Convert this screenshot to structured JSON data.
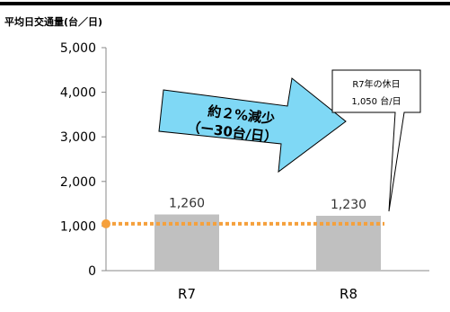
{
  "chart_data": {
    "type": "bar",
    "title": "平均日交通量(台／日)",
    "xlabel": "",
    "ylabel": "",
    "categories": [
      "R7",
      "R8"
    ],
    "values": [
      1260,
      1230
    ],
    "data_labels": [
      "1,260",
      "1,230"
    ],
    "ylim": [
      0,
      5000
    ],
    "yticks": [
      0,
      1000,
      2000,
      3000,
      4000,
      5000
    ],
    "ytick_labels": [
      "0",
      "1,000",
      "2,000",
      "3,000",
      "4,000",
      "5,000"
    ],
    "grid": false,
    "bar_color": "#c0c0c0",
    "reference_line": {
      "value": 1050,
      "color": "#f5a03c",
      "style": "dotted"
    },
    "annotations": {
      "arrow": {
        "line1": "約２%減少",
        "line2": "（ー30台/日）",
        "fill": "#7fd8f5"
      },
      "callout": {
        "line1": "R7年の休日",
        "line2": "1,050 台/日"
      }
    }
  }
}
